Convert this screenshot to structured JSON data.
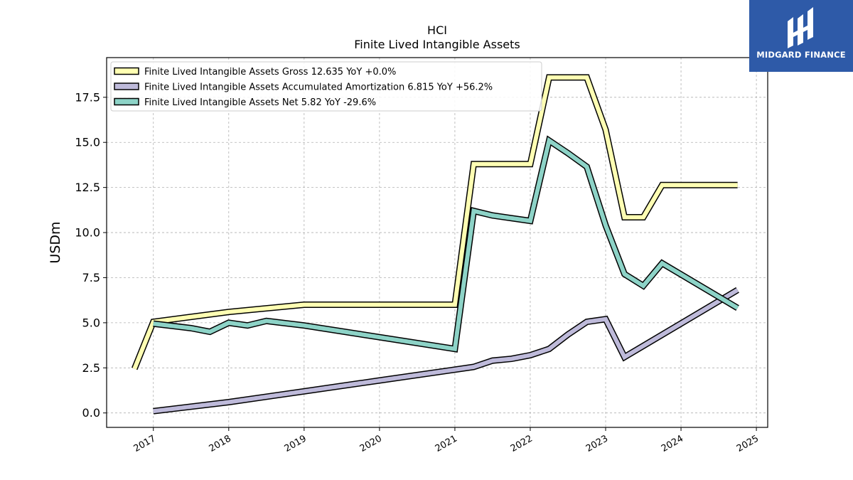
{
  "colors": {
    "gross": "#ffffb3",
    "amortization": "#bebada",
    "net": "#8dd3c7",
    "outline": "#000000",
    "logo_bg": "#2e5aa8"
  },
  "logo": {
    "name": "MIDGARD FINANCE",
    "icon": "midgard-logo-icon"
  },
  "chart_data": {
    "type": "line",
    "title": "HCI",
    "subtitle": "Finite Lived Intangible Assets",
    "ylabel": "USDm",
    "xlabel": "",
    "ylim": [
      -0.8,
      19.7
    ],
    "xlim": [
      2016.38,
      2025.15
    ],
    "yticks": [
      0.0,
      2.5,
      5.0,
      7.5,
      10.0,
      12.5,
      15.0,
      17.5
    ],
    "ytick_labels": [
      "0.0",
      "2.5",
      "5.0",
      "7.5",
      "10.0",
      "12.5",
      "15.0",
      "17.5"
    ],
    "xticks": [
      2017,
      2018,
      2019,
      2020,
      2021,
      2022,
      2023,
      2024,
      2025
    ],
    "xtick_labels": [
      "2017",
      "2018",
      "2019",
      "2020",
      "2021",
      "2022",
      "2023",
      "2024",
      "2025"
    ],
    "grid": true,
    "legend_position": "top-left",
    "series": [
      {
        "name": "Finite Lived Intangible Assets Gross  12.635 YoY +0.0%",
        "color_key": "gross",
        "points": [
          [
            2016.75,
            2.45
          ],
          [
            2017.0,
            5.05
          ],
          [
            2018.0,
            5.6
          ],
          [
            2019.0,
            6.0
          ],
          [
            2020.0,
            6.0
          ],
          [
            2021.0,
            6.0
          ],
          [
            2021.25,
            13.8
          ],
          [
            2021.5,
            13.8
          ],
          [
            2021.75,
            13.8
          ],
          [
            2022.0,
            13.8
          ],
          [
            2022.25,
            18.6
          ],
          [
            2022.5,
            18.6
          ],
          [
            2022.75,
            18.6
          ],
          [
            2023.0,
            15.7
          ],
          [
            2023.25,
            10.85
          ],
          [
            2023.5,
            10.85
          ],
          [
            2023.75,
            12.635
          ],
          [
            2024.0,
            12.635
          ],
          [
            2024.25,
            12.635
          ],
          [
            2024.5,
            12.635
          ],
          [
            2024.75,
            12.635
          ]
        ]
      },
      {
        "name": "Finite Lived Intangible Assets Accumulated Amortization  6.815 YoY +56.2%",
        "color_key": "amortization",
        "points": [
          [
            2017.0,
            0.1
          ],
          [
            2018.0,
            0.6
          ],
          [
            2019.0,
            1.2
          ],
          [
            2020.0,
            1.8
          ],
          [
            2021.0,
            2.4
          ],
          [
            2021.25,
            2.55
          ],
          [
            2021.5,
            2.9
          ],
          [
            2021.75,
            3.0
          ],
          [
            2022.0,
            3.2
          ],
          [
            2022.25,
            3.55
          ],
          [
            2022.5,
            4.35
          ],
          [
            2022.75,
            5.05
          ],
          [
            2023.0,
            5.2
          ],
          [
            2023.25,
            3.1
          ],
          [
            2024.75,
            6.815
          ]
        ]
      },
      {
        "name": "Finite Lived Intangible Assets Net  5.82 YoY -29.6%",
        "color_key": "net",
        "points": [
          [
            2017.0,
            4.95
          ],
          [
            2017.5,
            4.7
          ],
          [
            2017.75,
            4.5
          ],
          [
            2018.0,
            5.0
          ],
          [
            2018.25,
            4.85
          ],
          [
            2018.5,
            5.1
          ],
          [
            2019.0,
            4.85
          ],
          [
            2020.0,
            4.2
          ],
          [
            2021.0,
            3.55
          ],
          [
            2021.25,
            11.2
          ],
          [
            2021.5,
            10.95
          ],
          [
            2021.75,
            10.8
          ],
          [
            2022.0,
            10.65
          ],
          [
            2022.25,
            15.1
          ],
          [
            2022.5,
            14.4
          ],
          [
            2022.75,
            13.65
          ],
          [
            2023.0,
            10.4
          ],
          [
            2023.25,
            7.7
          ],
          [
            2023.5,
            7.05
          ],
          [
            2023.75,
            8.3
          ],
          [
            2024.75,
            5.82
          ]
        ]
      }
    ]
  }
}
